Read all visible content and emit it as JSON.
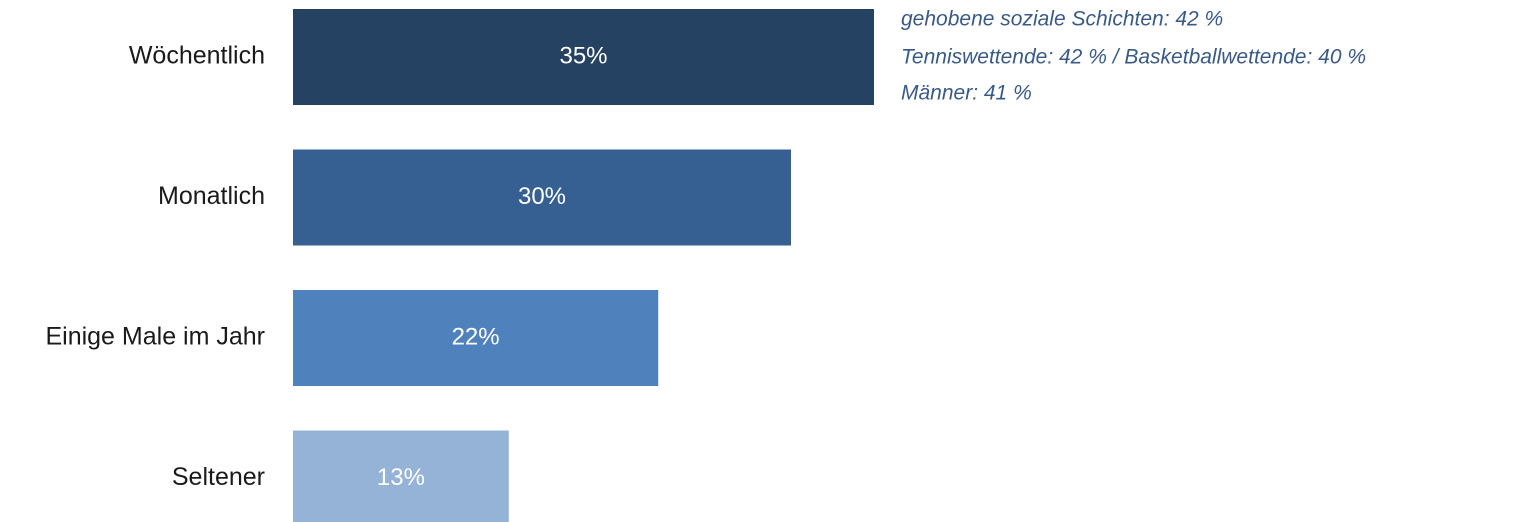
{
  "chart_data": {
    "type": "bar",
    "orientation": "horizontal",
    "categories": [
      "Wöchentlich",
      "Monatlich",
      "Einige Male im Jahr",
      "Seltener"
    ],
    "values": [
      35,
      30,
      22,
      13
    ],
    "value_labels": [
      "35%",
      "30%",
      "22%",
      "13%"
    ],
    "colors": [
      "#264263",
      "#366092",
      "#4f81bd",
      "#95b3d7"
    ],
    "annotations": [
      "gehobene soziale Schichten: 42 %",
      "Tenniswettende: 42 % / Basketballwettende: 40 %",
      "Männer: 41 %"
    ]
  }
}
